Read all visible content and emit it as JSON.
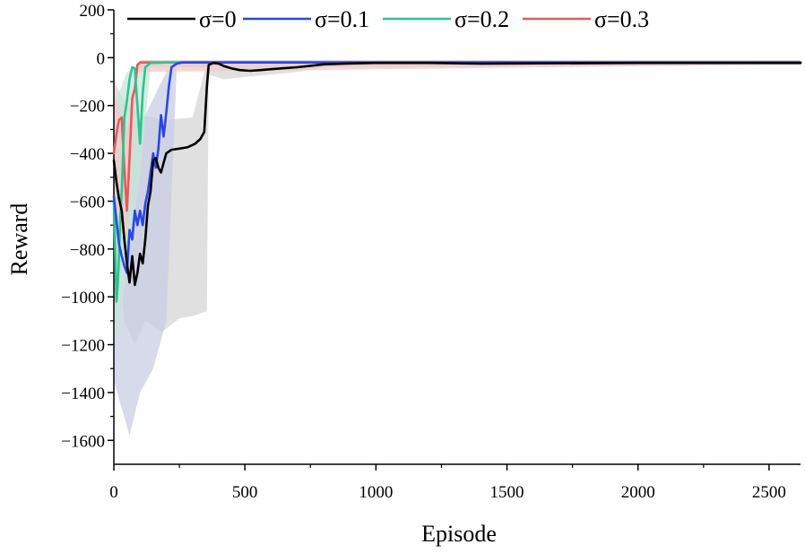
{
  "chart_data": {
    "type": "line",
    "title": "",
    "xlabel": "Episode",
    "ylabel": "Reward",
    "xlim": [
      0,
      2620
    ],
    "ylim": [
      -1700,
      200
    ],
    "xticks": [
      0,
      500,
      1000,
      1500,
      2000,
      2500
    ],
    "xtick_labels": [
      "0",
      "500",
      "1000",
      "1500",
      "2000",
      "2500"
    ],
    "yticks": [
      200,
      0,
      -200,
      -400,
      -600,
      -800,
      -1000,
      -1200,
      -1400,
      -1600
    ],
    "ytick_labels": [
      "200",
      "0",
      "−200",
      "−400",
      "−600",
      "−800",
      "−1000",
      "−1200",
      "−1400",
      "−1600"
    ],
    "grid": false,
    "legend_position": "top",
    "series": [
      {
        "name": "σ=0",
        "color": "#000000",
        "band_color": "#d6d6d6",
        "points": [
          [
            0,
            -430
          ],
          [
            10,
            -520
          ],
          [
            20,
            -590
          ],
          [
            30,
            -640
          ],
          [
            40,
            -760
          ],
          [
            50,
            -860
          ],
          [
            60,
            -940
          ],
          [
            70,
            -830
          ],
          [
            80,
            -950
          ],
          [
            90,
            -900
          ],
          [
            100,
            -820
          ],
          [
            110,
            -860
          ],
          [
            120,
            -760
          ],
          [
            130,
            -620
          ],
          [
            140,
            -560
          ],
          [
            150,
            -430
          ],
          [
            160,
            -420
          ],
          [
            170,
            -460
          ],
          [
            180,
            -480
          ],
          [
            190,
            -440
          ],
          [
            200,
            -400
          ],
          [
            220,
            -385
          ],
          [
            250,
            -380
          ],
          [
            280,
            -375
          ],
          [
            310,
            -360
          ],
          [
            330,
            -340
          ],
          [
            345,
            -310
          ],
          [
            355,
            -120
          ],
          [
            362,
            -30
          ],
          [
            380,
            -22
          ],
          [
            400,
            -25
          ],
          [
            420,
            -35
          ],
          [
            450,
            -45
          ],
          [
            480,
            -52
          ],
          [
            520,
            -55
          ],
          [
            560,
            -52
          ],
          [
            600,
            -48
          ],
          [
            650,
            -44
          ],
          [
            700,
            -40
          ],
          [
            750,
            -34
          ],
          [
            800,
            -28
          ],
          [
            900,
            -24
          ],
          [
            1000,
            -22
          ],
          [
            1200,
            -22
          ],
          [
            1400,
            -25
          ],
          [
            1500,
            -24
          ],
          [
            2000,
            -22
          ],
          [
            2620,
            -22
          ]
        ],
        "band_upper": [
          [
            0,
            -100
          ],
          [
            40,
            -180
          ],
          [
            100,
            -240
          ],
          [
            200,
            -260
          ],
          [
            300,
            -250
          ],
          [
            355,
            -20
          ],
          [
            400,
            -10
          ],
          [
            800,
            -10
          ],
          [
            2620,
            -10
          ]
        ],
        "band_lower": [
          [
            0,
            -650
          ],
          [
            40,
            -1100
          ],
          [
            80,
            -1200
          ],
          [
            120,
            -1100
          ],
          [
            180,
            -1150
          ],
          [
            250,
            -1090
          ],
          [
            300,
            -1080
          ],
          [
            355,
            -1060
          ],
          [
            362,
            -70
          ],
          [
            420,
            -90
          ],
          [
            500,
            -80
          ],
          [
            700,
            -60
          ],
          [
            800,
            -40
          ],
          [
            2620,
            -30
          ]
        ]
      },
      {
        "name": "σ=0.1",
        "color": "#2a46e8",
        "band_color": "#c9cde4",
        "points": [
          [
            0,
            -580
          ],
          [
            10,
            -680
          ],
          [
            20,
            -780
          ],
          [
            30,
            -830
          ],
          [
            40,
            -870
          ],
          [
            50,
            -900
          ],
          [
            60,
            -720
          ],
          [
            70,
            -760
          ],
          [
            80,
            -640
          ],
          [
            90,
            -700
          ],
          [
            100,
            -640
          ],
          [
            110,
            -700
          ],
          [
            120,
            -610
          ],
          [
            130,
            -560
          ],
          [
            140,
            -480
          ],
          [
            150,
            -400
          ],
          [
            160,
            -460
          ],
          [
            170,
            -380
          ],
          [
            180,
            -240
          ],
          [
            190,
            -330
          ],
          [
            200,
            -230
          ],
          [
            210,
            -120
          ],
          [
            220,
            -40
          ],
          [
            240,
            -25
          ],
          [
            260,
            -20
          ],
          [
            300,
            -20
          ],
          [
            2620,
            -20
          ]
        ],
        "band_upper": [
          [
            0,
            -250
          ],
          [
            60,
            -300
          ],
          [
            120,
            -240
          ],
          [
            200,
            -60
          ],
          [
            250,
            -12
          ],
          [
            2620,
            -12
          ]
        ],
        "band_lower": [
          [
            0,
            -1350
          ],
          [
            60,
            -1580
          ],
          [
            100,
            -1400
          ],
          [
            150,
            -1300
          ],
          [
            200,
            -1100
          ],
          [
            240,
            -40
          ],
          [
            2620,
            -30
          ]
        ]
      },
      {
        "name": "σ=0.2",
        "color": "#2bc48e",
        "band_color": "#c7e6da",
        "points": [
          [
            0,
            -600
          ],
          [
            5,
            -820
          ],
          [
            10,
            -1020
          ],
          [
            15,
            -950
          ],
          [
            20,
            -820
          ],
          [
            25,
            -660
          ],
          [
            30,
            -560
          ],
          [
            40,
            -250
          ],
          [
            50,
            -180
          ],
          [
            60,
            -90
          ],
          [
            70,
            -40
          ],
          [
            80,
            -45
          ],
          [
            90,
            -200
          ],
          [
            100,
            -360
          ],
          [
            110,
            -150
          ],
          [
            120,
            -40
          ],
          [
            140,
            -22
          ],
          [
            200,
            -20
          ],
          [
            2620,
            -20
          ]
        ],
        "band_upper": [
          [
            0,
            -200
          ],
          [
            50,
            -60
          ],
          [
            120,
            -12
          ],
          [
            2620,
            -12
          ]
        ],
        "band_lower": [
          [
            0,
            -1200
          ],
          [
            20,
            -1150
          ],
          [
            60,
            -800
          ],
          [
            100,
            -500
          ],
          [
            140,
            -40
          ],
          [
            2620,
            -30
          ]
        ]
      },
      {
        "name": "σ=0.3",
        "color": "#e45a5a",
        "band_color": "#f2c9c9",
        "points": [
          [
            0,
            -400
          ],
          [
            10,
            -320
          ],
          [
            20,
            -260
          ],
          [
            30,
            -250
          ],
          [
            40,
            -470
          ],
          [
            50,
            -640
          ],
          [
            60,
            -420
          ],
          [
            70,
            -170
          ],
          [
            80,
            -130
          ],
          [
            90,
            -30
          ],
          [
            100,
            -20
          ],
          [
            120,
            -20
          ],
          [
            2620,
            -20
          ]
        ],
        "band_upper": [
          [
            0,
            -150
          ],
          [
            50,
            -300
          ],
          [
            100,
            -10
          ],
          [
            2620,
            -10
          ]
        ],
        "band_lower": [
          [
            0,
            -700
          ],
          [
            50,
            -760
          ],
          [
            90,
            -60
          ],
          [
            2620,
            -28
          ]
        ]
      }
    ]
  }
}
